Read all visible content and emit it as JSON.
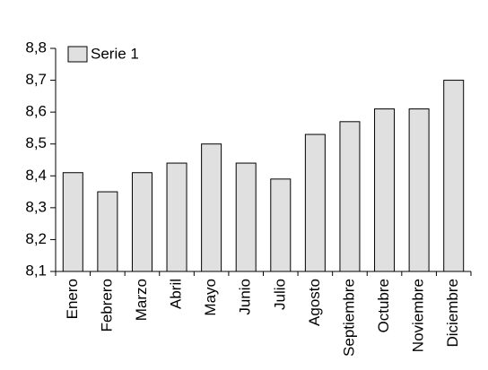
{
  "chart_data": {
    "type": "bar",
    "categories": [
      "Enero",
      "Febrero",
      "Marzo",
      "Abril",
      "Mayo",
      "Junio",
      "Julio",
      "Agosto",
      "Septiembre",
      "Octubre",
      "Noviembre",
      "Diciembre"
    ],
    "series": [
      {
        "name": "Serie 1",
        "color": "#e0e0e0",
        "values": [
          8.41,
          8.35,
          8.41,
          8.44,
          8.5,
          8.44,
          8.39,
          8.53,
          8.57,
          8.61,
          8.61,
          8.7
        ]
      }
    ],
    "ylim": [
      8.1,
      8.8
    ],
    "yticks": [
      {
        "value": 8.1,
        "label": "8,1"
      },
      {
        "value": 8.2,
        "label": "8,2"
      },
      {
        "value": 8.3,
        "label": "8,3"
      },
      {
        "value": 8.4,
        "label": "8,4"
      },
      {
        "value": 8.5,
        "label": "8,5"
      },
      {
        "value": 8.6,
        "label": "8,6"
      },
      {
        "value": 8.7,
        "label": "8,7"
      },
      {
        "value": 8.8,
        "label": "8,8"
      }
    ],
    "grid": false,
    "legend": "top-left"
  }
}
